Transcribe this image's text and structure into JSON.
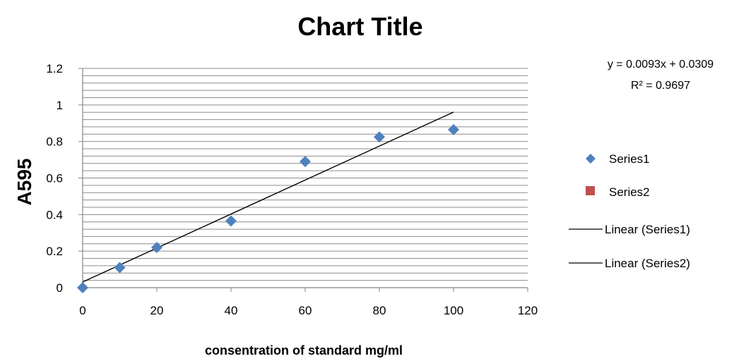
{
  "chart_data": {
    "type": "scatter",
    "title": "Chart Title",
    "xlabel": "consentration of standard mg/ml",
    "ylabel": "A595",
    "xlim": [
      0,
      120
    ],
    "ylim": [
      0,
      1.2
    ],
    "x_ticks": [
      "0",
      "20",
      "40",
      "60",
      "80",
      "100",
      "120"
    ],
    "y_ticks": [
      "0",
      "0.2",
      "0.4",
      "0.6",
      "0.8",
      "1",
      "1.2"
    ],
    "minor_grid_step": 0.04,
    "grid": true,
    "legend_position": "right",
    "series": [
      {
        "name": "Series1",
        "marker": "diamond",
        "color": "#4F81BD",
        "points": [
          {
            "x": 0,
            "y": 0.0
          },
          {
            "x": 10,
            "y": 0.11
          },
          {
            "x": 20,
            "y": 0.22
          },
          {
            "x": 40,
            "y": 0.365
          },
          {
            "x": 60,
            "y": 0.69
          },
          {
            "x": 80,
            "y": 0.825
          },
          {
            "x": 100,
            "y": 0.865
          }
        ]
      },
      {
        "name": "Series2",
        "marker": "square",
        "color": "#C0504D",
        "points": []
      }
    ],
    "trendlines": [
      {
        "name": "Linear (Series1)",
        "slope": 0.0093,
        "intercept": 0.0309,
        "x_range": [
          0,
          100
        ],
        "color": "#000000"
      },
      {
        "name": "Linear (Series2)",
        "color": "#000000"
      }
    ],
    "annotations": {
      "equation": "y = 0.0093x + 0.0309",
      "r_squared": "R² = 0.9697"
    }
  }
}
